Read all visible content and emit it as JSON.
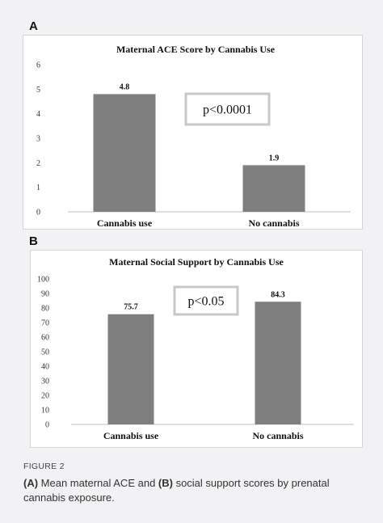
{
  "panels": {
    "a": {
      "letter": "A"
    },
    "b": {
      "letter": "B"
    }
  },
  "chart_data": [
    {
      "type": "bar",
      "title": "Maternal ACE Score by Cannabis Use",
      "categories": [
        "Cannabis use",
        "No cannabis"
      ],
      "values": [
        4.8,
        1.9
      ],
      "data_labels": [
        "4.8",
        "1.9"
      ],
      "ylim": [
        0,
        6
      ],
      "yticks": [
        0,
        1,
        2,
        3,
        4,
        5,
        6
      ],
      "annotation": "p<0.0001",
      "bar_color": "#7f7f7f",
      "grid": false,
      "legend": "none"
    },
    {
      "type": "bar",
      "title": "Maternal Social Support by Cannabis Use",
      "categories": [
        "Cannabis use",
        "No cannabis"
      ],
      "values": [
        75.7,
        84.3
      ],
      "data_labels": [
        "75.7",
        "84.3"
      ],
      "ylim": [
        0,
        100
      ],
      "yticks": [
        0,
        10,
        20,
        30,
        40,
        50,
        60,
        70,
        80,
        90,
        100
      ],
      "annotation": "p<0.05",
      "bar_color": "#7f7f7f",
      "grid": false,
      "legend": "none"
    }
  ],
  "caption": {
    "label": "FIGURE 2",
    "part_a_marker": "(A)",
    "part_a_text": " Mean maternal ACE and ",
    "part_b_marker": "(B)",
    "part_b_text": " social support scores by prenatal cannabis exposure."
  }
}
